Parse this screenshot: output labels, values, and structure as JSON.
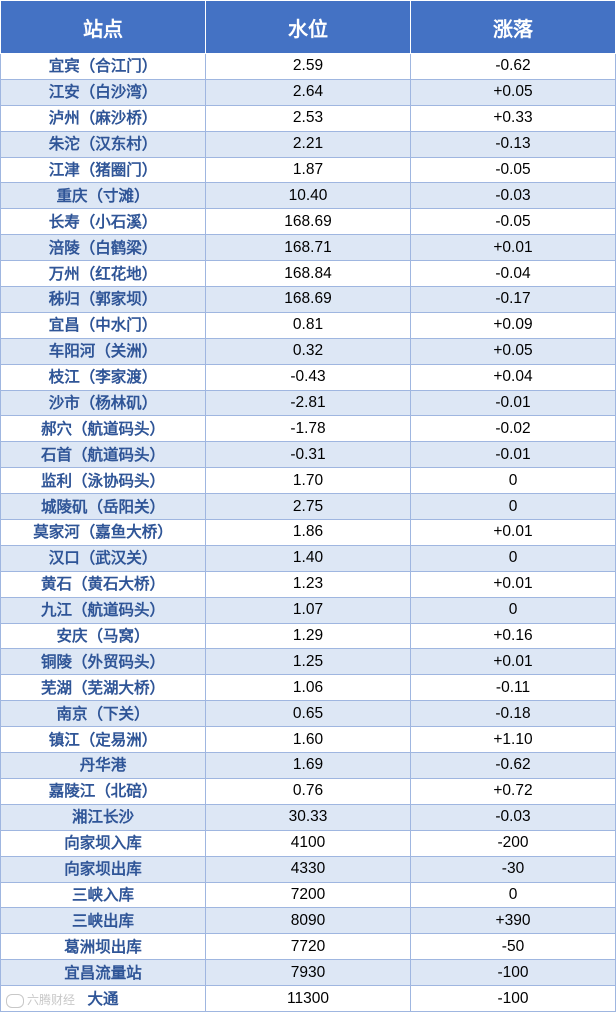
{
  "table": {
    "headers": [
      "站点",
      "水位",
      "涨落"
    ],
    "rows": [
      [
        "宜宾（合江门）",
        "2.59",
        "-0.62"
      ],
      [
        "江安（白沙湾）",
        "2.64",
        "+0.05"
      ],
      [
        "泸州（麻沙桥）",
        "2.53",
        "+0.33"
      ],
      [
        "朱沱（汉东村）",
        "2.21",
        "-0.13"
      ],
      [
        "江津（猪圈门）",
        "1.87",
        "-0.05"
      ],
      [
        "重庆（寸滩）",
        "10.40",
        "-0.03"
      ],
      [
        "长寿（小石溪）",
        "168.69",
        "-0.05"
      ],
      [
        "涪陵（白鹤梁）",
        "168.71",
        "+0.01"
      ],
      [
        "万州（红花地）",
        "168.84",
        "-0.04"
      ],
      [
        "秭归（郭家坝）",
        "168.69",
        "-0.17"
      ],
      [
        "宜昌（中水门）",
        "0.81",
        "+0.09"
      ],
      [
        "车阳河（关洲）",
        "0.32",
        "+0.05"
      ],
      [
        "枝江（李家渡）",
        "-0.43",
        "+0.04"
      ],
      [
        "沙市（杨林矶）",
        "-2.81",
        "-0.01"
      ],
      [
        "郝穴（航道码头）",
        "-1.78",
        "-0.02"
      ],
      [
        "石首（航道码头）",
        "-0.31",
        "-0.01"
      ],
      [
        "监利（泳协码头）",
        "1.70",
        "0"
      ],
      [
        "城陵矶（岳阳关）",
        "2.75",
        "0"
      ],
      [
        "莫家河（嘉鱼大桥）",
        "1.86",
        "+0.01"
      ],
      [
        "汉口（武汉关）",
        "1.40",
        "0"
      ],
      [
        "黄石（黄石大桥）",
        "1.23",
        "+0.01"
      ],
      [
        "九江（航道码头）",
        "1.07",
        "0"
      ],
      [
        "安庆（马窝）",
        "1.29",
        "+0.16"
      ],
      [
        "铜陵（外贸码头）",
        "1.25",
        "+0.01"
      ],
      [
        "芜湖（芜湖大桥）",
        "1.06",
        "-0.11"
      ],
      [
        "南京（下关）",
        "0.65",
        "-0.18"
      ],
      [
        "镇江（定易洲）",
        "1.60",
        "+1.10"
      ],
      [
        "丹华港",
        "1.69",
        "-0.62"
      ],
      [
        "嘉陵江（北碚）",
        "0.76",
        "+0.72"
      ],
      [
        "湘江长沙",
        "30.33",
        "-0.03"
      ],
      [
        "向家坝入库",
        "4100",
        "-200"
      ],
      [
        "向家坝出库",
        "4330",
        "-30"
      ],
      [
        "三峡入库",
        "7200",
        "0"
      ],
      [
        "三峡出库",
        "8090",
        "+390"
      ],
      [
        "葛洲坝出库",
        "7720",
        "-50"
      ],
      [
        "宜昌流量站",
        "7930",
        "-100"
      ],
      [
        "大通",
        "11300",
        "-100"
      ]
    ]
  },
  "watermark": {
    "text": "六腾财经"
  },
  "colors": {
    "header_bg": "#4472c4",
    "stripe": "#dde7f5",
    "station_text": "#2f5597"
  }
}
